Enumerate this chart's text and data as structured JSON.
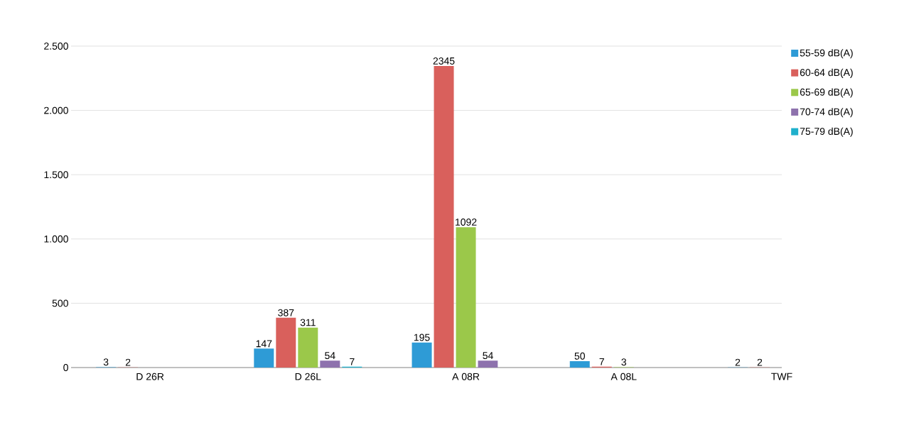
{
  "chart_data": {
    "type": "bar",
    "categories": [
      "D 26R",
      "D 26L",
      "A 08R",
      "A 08L",
      "TWF"
    ],
    "series": [
      {
        "name": "55-59 dB(A)",
        "color": "#2e9bd6",
        "values": [
          3,
          147,
          195,
          50,
          2
        ]
      },
      {
        "name": "60-64 dB(A)",
        "color": "#d9605c",
        "values": [
          2,
          387,
          2345,
          7,
          2
        ]
      },
      {
        "name": "65-69 dB(A)",
        "color": "#9bc84a",
        "values": [
          null,
          311,
          1092,
          3,
          null
        ]
      },
      {
        "name": "70-74 dB(A)",
        "color": "#8e72ad",
        "values": [
          null,
          54,
          54,
          null,
          null
        ]
      },
      {
        "name": "75-79 dB(A)",
        "color": "#1fb0cc",
        "values": [
          null,
          7,
          null,
          null,
          null
        ]
      }
    ],
    "ylim": [
      0,
      2500
    ],
    "yticks": [
      {
        "value": 0,
        "label": "0"
      },
      {
        "value": 500,
        "label": "500"
      },
      {
        "value": 1000,
        "label": "1.000"
      },
      {
        "value": 1500,
        "label": "1.500"
      },
      {
        "value": 2000,
        "label": "2.000"
      },
      {
        "value": 2500,
        "label": "2.500"
      }
    ],
    "grid": "y",
    "legend": "right",
    "data_labels": true
  }
}
